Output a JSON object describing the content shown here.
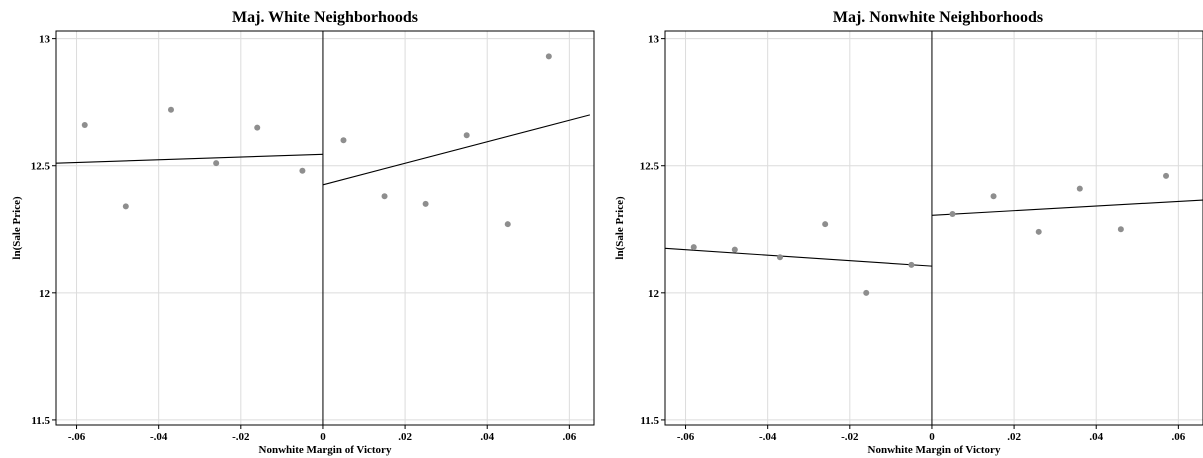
{
  "chart_data": [
    {
      "type": "scatter",
      "title": "Maj. White Neighborhoods",
      "xlabel": "Nonwhite Margin of Victory",
      "ylabel": "ln(Sale Price)",
      "xlim": [
        -0.065,
        0.066
      ],
      "ylim": [
        11.48,
        13.03
      ],
      "xticks": [
        -0.06,
        -0.04,
        -0.02,
        0,
        0.02,
        0.04,
        0.06
      ],
      "xtick_labels": [
        "-.06",
        "-.04",
        "-.02",
        "0",
        ".02",
        ".04",
        ".06"
      ],
      "yticks": [
        11.5,
        12,
        12.5,
        13
      ],
      "ytick_labels": [
        "11.5",
        "12",
        "12.5",
        "13"
      ],
      "cutoff": 0,
      "grid": true,
      "points": [
        {
          "x": -0.058,
          "y": 12.66
        },
        {
          "x": -0.048,
          "y": 12.34
        },
        {
          "x": -0.037,
          "y": 12.72
        },
        {
          "x": -0.026,
          "y": 12.51
        },
        {
          "x": -0.016,
          "y": 12.65
        },
        {
          "x": -0.005,
          "y": 12.48
        },
        {
          "x": 0.005,
          "y": 12.6
        },
        {
          "x": 0.015,
          "y": 12.38
        },
        {
          "x": 0.025,
          "y": 12.35
        },
        {
          "x": 0.035,
          "y": 12.62
        },
        {
          "x": 0.045,
          "y": 12.27
        },
        {
          "x": 0.055,
          "y": 12.93
        }
      ],
      "fit_lines": [
        {
          "x": [
            -0.065,
            0
          ],
          "y": [
            12.51,
            12.545
          ]
        },
        {
          "x": [
            0,
            0.065
          ],
          "y": [
            12.425,
            12.7
          ]
        }
      ]
    },
    {
      "type": "scatter",
      "title": "Maj. Nonwhite Neighborhoods",
      "xlabel": "Nonwhite Margin of Victory",
      "ylabel": "ln(Sale Price)",
      "xlim": [
        -0.065,
        0.066
      ],
      "ylim": [
        11.48,
        13.03
      ],
      "xticks": [
        -0.06,
        -0.04,
        -0.02,
        0,
        0.02,
        0.04,
        0.06
      ],
      "xtick_labels": [
        "-.06",
        "-.04",
        "-.02",
        "0",
        ".02",
        ".04",
        ".06"
      ],
      "yticks": [
        11.5,
        12,
        12.5,
        13
      ],
      "ytick_labels": [
        "11.5",
        "12",
        "12.5",
        "13"
      ],
      "cutoff": 0,
      "grid": true,
      "points": [
        {
          "x": -0.058,
          "y": 12.18
        },
        {
          "x": -0.048,
          "y": 12.17
        },
        {
          "x": -0.037,
          "y": 12.14
        },
        {
          "x": -0.026,
          "y": 12.27
        },
        {
          "x": -0.016,
          "y": 12.0
        },
        {
          "x": -0.005,
          "y": 12.11
        },
        {
          "x": 0.005,
          "y": 12.31
        },
        {
          "x": 0.015,
          "y": 12.38
        },
        {
          "x": 0.026,
          "y": 12.24
        },
        {
          "x": 0.036,
          "y": 12.41
        },
        {
          "x": 0.046,
          "y": 12.25
        },
        {
          "x": 0.057,
          "y": 12.46
        }
      ],
      "fit_lines": [
        {
          "x": [
            -0.065,
            0
          ],
          "y": [
            12.175,
            12.105
          ]
        },
        {
          "x": [
            0,
            0.066
          ],
          "y": [
            12.305,
            12.365
          ]
        }
      ]
    }
  ]
}
